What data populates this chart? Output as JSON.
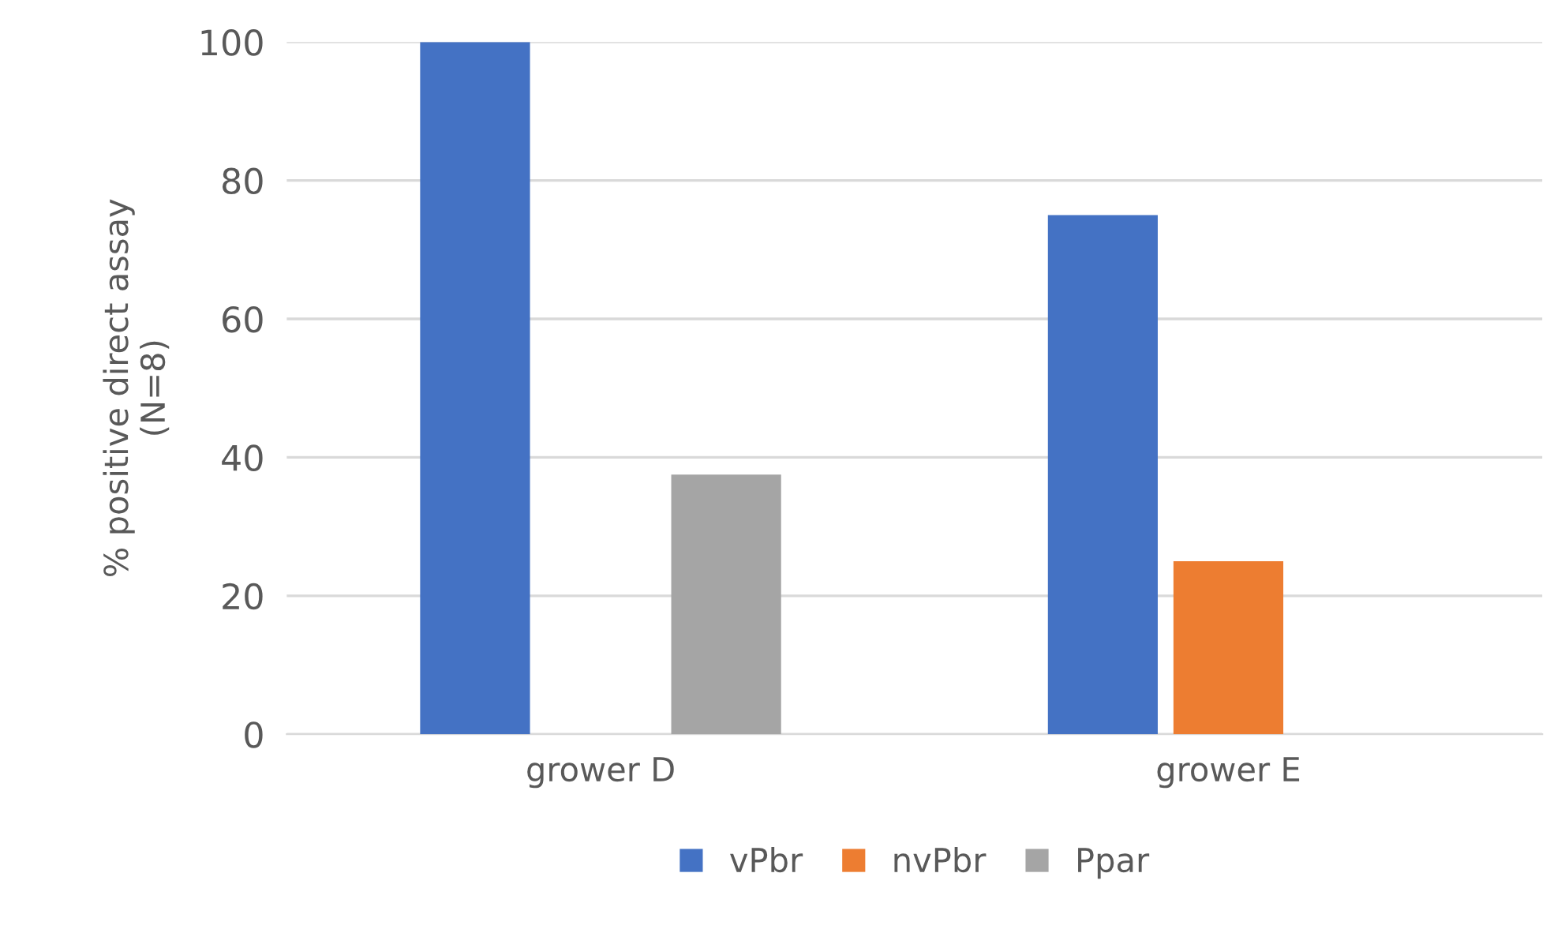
{
  "chart_data": {
    "type": "bar",
    "ylabel": "% positive direct assay\n(N=8)",
    "categories": [
      "grower D",
      "grower E"
    ],
    "series": [
      {
        "name": "vPbr",
        "color": "#4472c4",
        "values": [
          100,
          75
        ]
      },
      {
        "name": "nvPbr",
        "color": "#ed7d31",
        "values": [
          0,
          25
        ]
      },
      {
        "name": "Ppar",
        "color": "#a5a5a5",
        "values": [
          37.5,
          0
        ]
      }
    ],
    "ylim": [
      0,
      100
    ],
    "yticks": [
      0,
      20,
      40,
      60,
      80,
      100
    ],
    "grid": "y",
    "legend": "bottom"
  }
}
